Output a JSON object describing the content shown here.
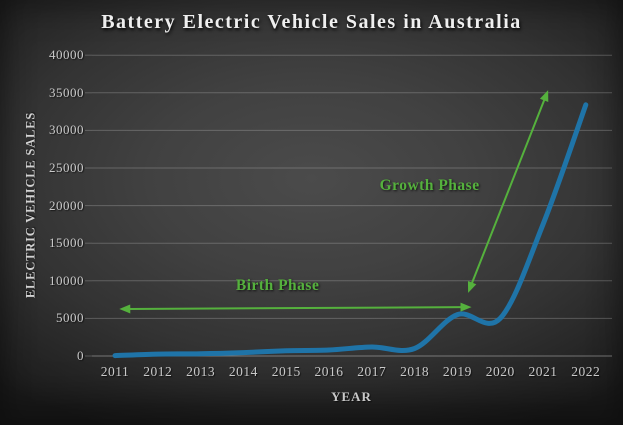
{
  "title": "Battery Electric Vehicle Sales in Australia",
  "colors": {
    "line": "#1f74a8",
    "annotation_green": "#55b13d",
    "gridline": "rgba(220,220,220,0.26)",
    "axis_line": "rgba(225,225,225,0.42)",
    "tick_text": "#c9c9c9",
    "title_text": "#efefef"
  },
  "chart_data": {
    "type": "line",
    "title": "Battery Electric Vehicle Sales in Australia",
    "xlabel": "YEAR",
    "ylabel": "ELECTRIC VEHICLE SALES",
    "categories": [
      "2011",
      "2012",
      "2013",
      "2014",
      "2015",
      "2016",
      "2017",
      "2018",
      "2019",
      "2020",
      "2021",
      "2022"
    ],
    "values": [
      50,
      250,
      300,
      450,
      700,
      800,
      1200,
      1000,
      5500,
      5000,
      17500,
      33400
    ],
    "ylim": [
      0,
      40000
    ],
    "ytick_step": 5000,
    "grid": true,
    "legend": "none",
    "line_style": "smooth",
    "annotations": [
      {
        "id": "birth-phase",
        "label": "Birth Phase",
        "type": "double-arrow",
        "arrow": {
          "x1": 2011.1,
          "y1": 6250,
          "x2": 2019.33,
          "y2": 6500
        },
        "label_at": {
          "x": 2014.8,
          "y": 9300
        }
      },
      {
        "id": "growth-phase",
        "label": "Growth Phase",
        "type": "double-arrow",
        "arrow": {
          "x1": 2019.25,
          "y1": 8400,
          "x2": 2021.12,
          "y2": 35350
        },
        "label_at": {
          "x": 2018.35,
          "y": 22600
        }
      }
    ]
  }
}
